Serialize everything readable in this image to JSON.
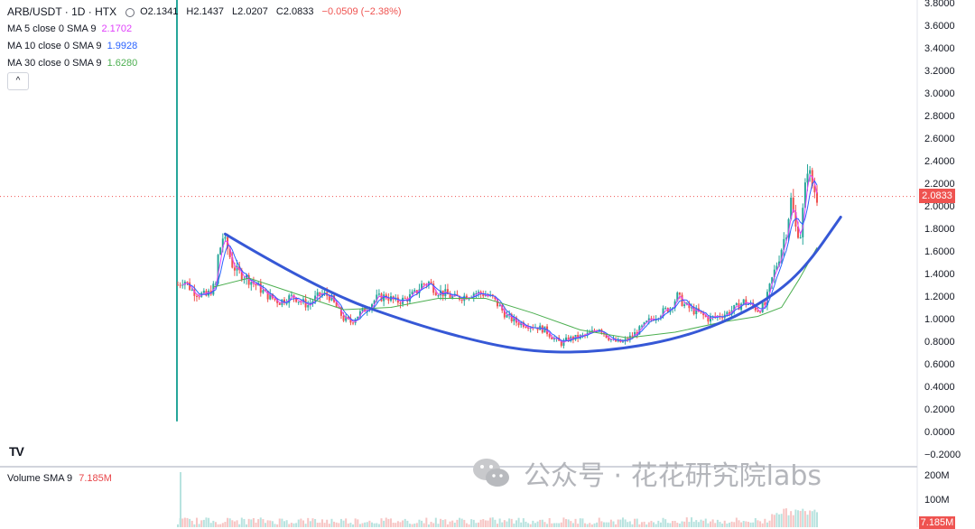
{
  "legend": {
    "symbol": "ARB/USDT · 1D · HTX",
    "open": "O2.1341",
    "high": "H2.1437",
    "low": "L2.0207",
    "close": "C2.0833",
    "change": "−0.0509 (−2.38%)",
    "ma5_label": "MA 5 close 0 SMA 9",
    "ma5_value": "2.1702",
    "ma10_label": "MA 10 close 0 SMA 9",
    "ma10_value": "1.9928",
    "ma30_label": "MA 30 close 0 SMA 9",
    "ma30_value": "1.6280",
    "collapse_glyph": "^"
  },
  "volume_legend": {
    "label": "Volume SMA 9",
    "value": "7.185M"
  },
  "price_tag": "2.0833",
  "volume_tag": "7.185M",
  "tv_logo": "TV",
  "watermark": "公众号 · 花花研究院labs",
  "colors": {
    "up": "#26a69a",
    "down": "#ef5350",
    "ma5": "#e040fb",
    "ma10": "#2962ff",
    "ma30": "#4caf50",
    "trendline": "#3658d6",
    "change": "#ef5350"
  },
  "chart_data": {
    "type": "candlestick",
    "title": "ARB/USDT · 1D · HTX",
    "y_axis_ticks": [
      "3.8000",
      "3.6000",
      "3.4000",
      "3.2000",
      "3.0000",
      "2.8000",
      "2.6000",
      "2.4000",
      "2.2000",
      "2.0000",
      "1.8000",
      "1.6000",
      "1.4000",
      "1.2000",
      "1.0000",
      "0.8000",
      "0.6000",
      "0.4000",
      "0.2000",
      "0.0000",
      "−0.2000"
    ],
    "ylim": [
      -0.2,
      3.8
    ],
    "volume_axis_ticks": [
      "200M",
      "100M"
    ],
    "last_price": 2.0833,
    "ohlc_last": {
      "open": 2.1341,
      "high": 2.1437,
      "low": 2.0207,
      "close": 2.0833
    },
    "listing_spike": {
      "high": 3.85,
      "low": 0.09
    },
    "price_path": [
      [
        0,
        1.3
      ],
      [
        5,
        1.35
      ],
      [
        12,
        1.25
      ],
      [
        18,
        1.22
      ],
      [
        24,
        1.2
      ],
      [
        28,
        1.25
      ],
      [
        32,
        1.3
      ],
      [
        34,
        1.55
      ],
      [
        38,
        1.72
      ],
      [
        42,
        1.62
      ],
      [
        46,
        1.48
      ],
      [
        50,
        1.42
      ],
      [
        56,
        1.38
      ],
      [
        62,
        1.33
      ],
      [
        68,
        1.28
      ],
      [
        74,
        1.22
      ],
      [
        80,
        1.18
      ],
      [
        86,
        1.15
      ],
      [
        92,
        1.18
      ],
      [
        98,
        1.2
      ],
      [
        104,
        1.15
      ],
      [
        110,
        1.12
      ],
      [
        116,
        1.18
      ],
      [
        122,
        1.22
      ],
      [
        128,
        1.2
      ],
      [
        134,
        1.1
      ],
      [
        140,
        1.0
      ],
      [
        146,
        0.97
      ],
      [
        152,
        1.03
      ],
      [
        160,
        1.1
      ],
      [
        168,
        1.18
      ],
      [
        176,
        1.2
      ],
      [
        184,
        1.15
      ],
      [
        192,
        1.17
      ],
      [
        200,
        1.22
      ],
      [
        206,
        1.3
      ],
      [
        212,
        1.32
      ],
      [
        218,
        1.25
      ],
      [
        226,
        1.22
      ],
      [
        234,
        1.18
      ],
      [
        242,
        1.2
      ],
      [
        250,
        1.23
      ],
      [
        258,
        1.22
      ],
      [
        266,
        1.18
      ],
      [
        272,
        1.1
      ],
      [
        278,
        1.02
      ],
      [
        286,
        0.97
      ],
      [
        294,
        0.95
      ],
      [
        302,
        0.93
      ],
      [
        310,
        0.9
      ],
      [
        318,
        0.82
      ],
      [
        324,
        0.78
      ],
      [
        330,
        0.82
      ],
      [
        336,
        0.83
      ],
      [
        344,
        0.85
      ],
      [
        350,
        0.88
      ],
      [
        356,
        0.92
      ],
      [
        362,
        0.85
      ],
      [
        368,
        0.8
      ],
      [
        376,
        0.79
      ],
      [
        384,
        0.85
      ],
      [
        392,
        0.92
      ],
      [
        400,
        1.0
      ],
      [
        408,
        1.05
      ],
      [
        416,
        1.1
      ],
      [
        422,
        1.2
      ],
      [
        428,
        1.12
      ],
      [
        434,
        1.08
      ],
      [
        440,
        1.05
      ],
      [
        448,
        1.0
      ],
      [
        456,
        1.02
      ],
      [
        464,
        1.05
      ],
      [
        472,
        1.1
      ],
      [
        478,
        1.15
      ],
      [
        484,
        1.12
      ],
      [
        490,
        1.08
      ],
      [
        496,
        1.12
      ],
      [
        502,
        1.35
      ],
      [
        508,
        1.55
      ],
      [
        514,
        1.78
      ],
      [
        518,
        2.05
      ],
      [
        522,
        1.8
      ],
      [
        526,
        1.75
      ],
      [
        530,
        2.15
      ],
      [
        532,
        2.35
      ],
      [
        536,
        2.18
      ],
      [
        540,
        2.08
      ]
    ],
    "ma30_path": [
      [
        30,
        1.28
      ],
      [
        60,
        1.36
      ],
      [
        100,
        1.22
      ],
      [
        140,
        1.08
      ],
      [
        180,
        1.1
      ],
      [
        220,
        1.18
      ],
      [
        260,
        1.18
      ],
      [
        300,
        1.05
      ],
      [
        340,
        0.9
      ],
      [
        380,
        0.83
      ],
      [
        420,
        0.88
      ],
      [
        460,
        0.97
      ],
      [
        490,
        1.02
      ],
      [
        510,
        1.1
      ],
      [
        525,
        1.35
      ],
      [
        540,
        1.63
      ]
    ],
    "trendline_path": [
      [
        40,
        1.75
      ],
      [
        120,
        1.25
      ],
      [
        200,
        0.95
      ],
      [
        260,
        0.78
      ],
      [
        300,
        0.71
      ],
      [
        340,
        0.7
      ],
      [
        380,
        0.74
      ],
      [
        420,
        0.82
      ],
      [
        460,
        0.96
      ],
      [
        500,
        1.18
      ],
      [
        530,
        1.45
      ],
      [
        560,
        1.9
      ]
    ]
  }
}
